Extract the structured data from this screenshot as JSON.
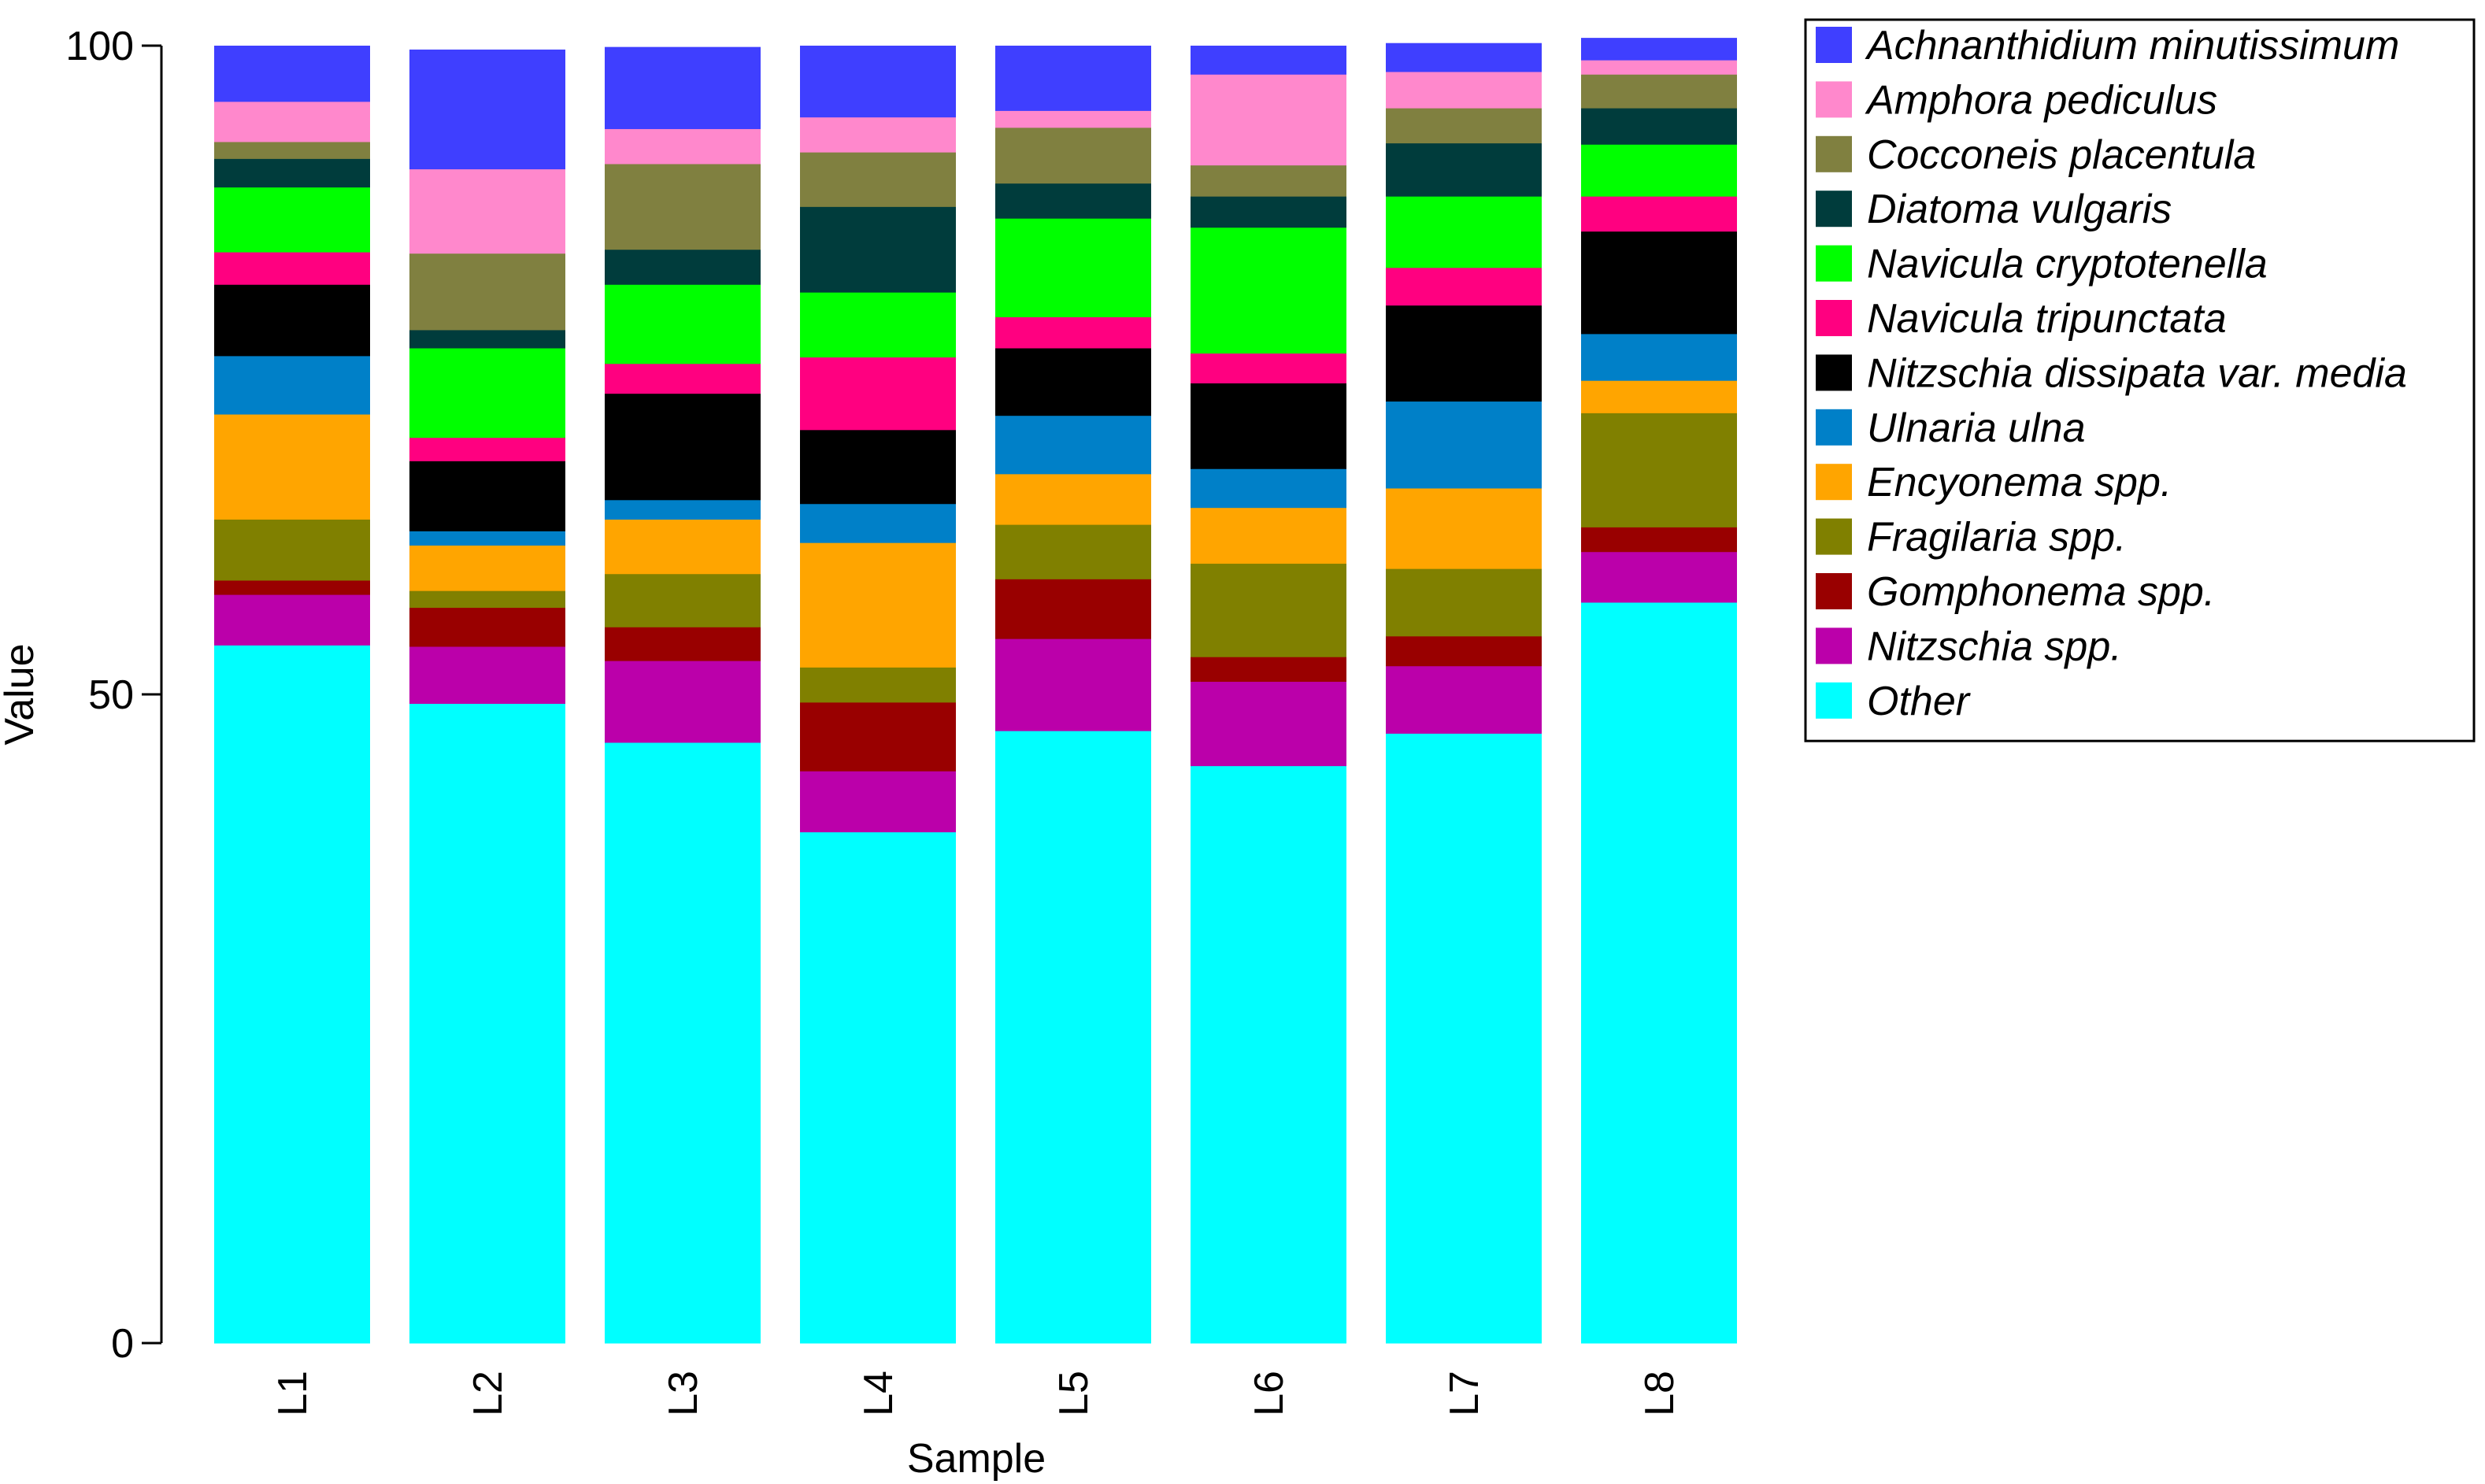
{
  "chart_data": {
    "type": "bar",
    "stacked": true,
    "title": "",
    "xlabel": "Sample",
    "ylabel": "Value",
    "ylim": [
      0,
      100
    ],
    "yticks": [
      0,
      50,
      100
    ],
    "ytick_labels": [
      "0",
      "50",
      "100"
    ],
    "legend_position": "top-right",
    "grid": false,
    "categories": [
      "L1",
      "L2",
      "L3",
      "L4",
      "L5",
      "L6",
      "L7",
      "L8"
    ],
    "series": [
      {
        "name": "Other",
        "color": "#00FFFF",
        "values": [
          53.8,
          49.3,
          46.3,
          39.4,
          47.2,
          44.5,
          47.0,
          57.1
        ]
      },
      {
        "name": "Nitzschia spp.",
        "color": "#BB00AA",
        "values": [
          3.9,
          4.4,
          6.3,
          4.7,
          7.1,
          6.5,
          5.2,
          3.9
        ]
      },
      {
        "name": "Gomphonema spp.",
        "color": "#990000",
        "values": [
          1.1,
          3.0,
          2.6,
          5.3,
          4.6,
          1.9,
          2.3,
          1.9
        ]
      },
      {
        "name": "Fragilaria spp.",
        "color": "#808000",
        "values": [
          4.7,
          1.3,
          4.1,
          2.7,
          4.2,
          7.2,
          5.2,
          8.8
        ]
      },
      {
        "name": "Encyonema spp.",
        "color": "#FFA500",
        "values": [
          8.1,
          3.5,
          4.2,
          9.6,
          3.9,
          4.3,
          6.2,
          2.5
        ]
      },
      {
        "name": "Ulnaria ulna",
        "color": "#0080C8",
        "values": [
          4.5,
          1.1,
          1.5,
          3.0,
          4.5,
          3.0,
          6.7,
          3.6
        ]
      },
      {
        "name": "Nitzschia dissipata var. media",
        "color": "#000000",
        "values": [
          5.5,
          5.4,
          8.2,
          5.7,
          5.2,
          6.6,
          7.4,
          7.9
        ]
      },
      {
        "name": "Navicula tripunctata",
        "color": "#FF0080",
        "values": [
          2.5,
          1.8,
          2.3,
          5.6,
          2.4,
          2.3,
          2.9,
          2.7
        ]
      },
      {
        "name": "Navicula cryptotenella",
        "color": "#00FF00",
        "values": [
          5.0,
          6.9,
          6.1,
          5.0,
          7.6,
          9.7,
          5.5,
          4.0
        ]
      },
      {
        "name": "Diatoma vulgaris",
        "color": "#003C3C",
        "values": [
          2.2,
          1.4,
          2.7,
          6.6,
          2.7,
          2.4,
          4.1,
          2.8
        ]
      },
      {
        "name": "Cocconeis placentula",
        "color": "#808040",
        "values": [
          1.3,
          5.9,
          6.6,
          4.2,
          4.3,
          2.4,
          2.7,
          2.6
        ]
      },
      {
        "name": "Amphora pediculus",
        "color": "#FF88CC",
        "values": [
          3.1,
          6.5,
          2.7,
          2.7,
          1.3,
          7.0,
          2.8,
          1.1
        ]
      },
      {
        "name": "Achnanthidium minutissimum",
        "color": "#3F3FFF",
        "values": [
          4.3,
          9.2,
          6.3,
          5.5,
          5.0,
          2.2,
          2.2,
          1.7
        ]
      }
    ]
  }
}
